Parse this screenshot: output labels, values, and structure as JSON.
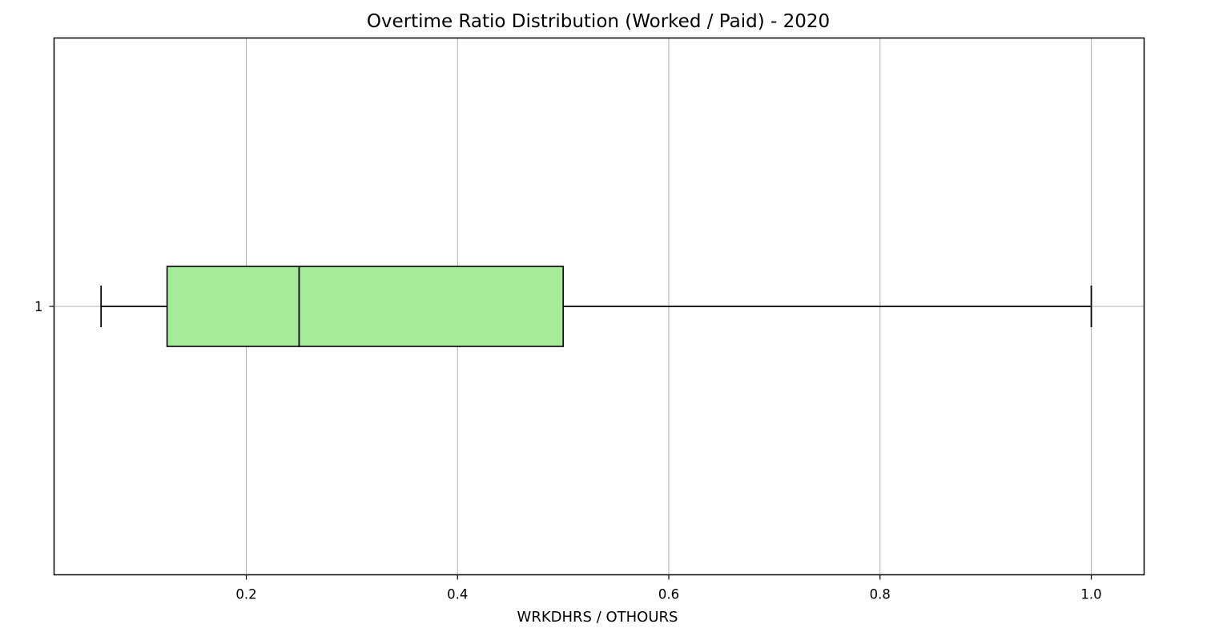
{
  "chart_data": {
    "type": "boxplot",
    "orientation": "horizontal",
    "title": "Overtime Ratio Distribution (Worked / Paid) - 2020",
    "xlabel": "WRKDHRS / OTHOURS",
    "ylabel": "",
    "xlim": [
      0.018,
      1.05
    ],
    "x_ticks": [
      0.2,
      0.4,
      0.6,
      0.8,
      1.0
    ],
    "x_tick_labels": [
      "0.2",
      "0.4",
      "0.6",
      "0.8",
      "1.0"
    ],
    "y_tick_labels": [
      "1"
    ],
    "grid": true,
    "series": [
      {
        "position": 1,
        "whisker_low": 0.0625,
        "q1": 0.125,
        "median": 0.25,
        "q3": 0.5,
        "whisker_high": 1.0,
        "color": "#a6eb9a"
      }
    ]
  }
}
